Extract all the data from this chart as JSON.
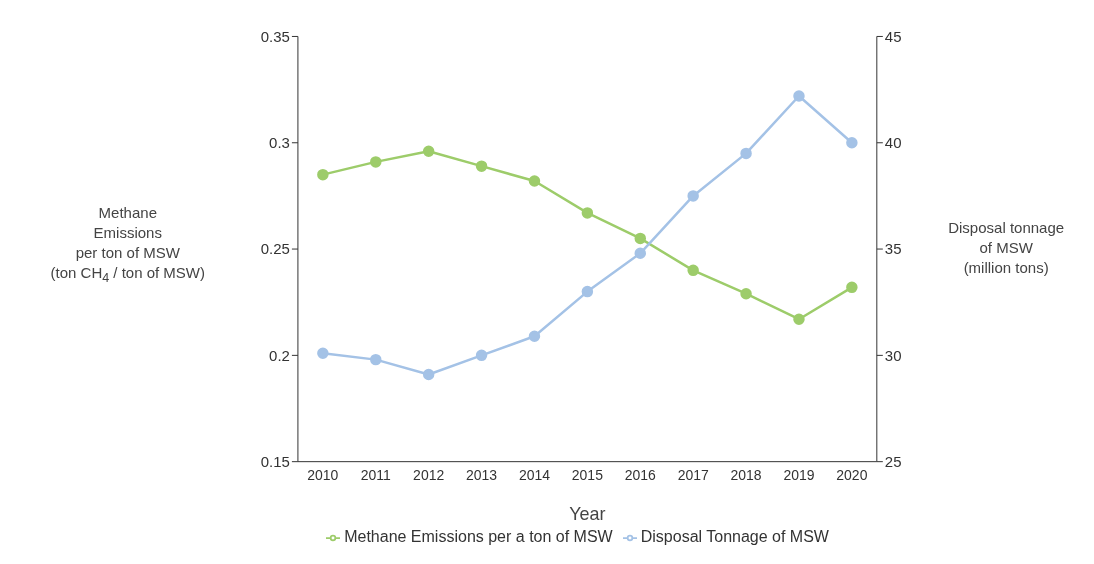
{
  "chart_data": {
    "type": "line",
    "xlabel": "Year",
    "ylabel": "Methane\nEmissions\nper ton of MSW\n(ton CH$_{4}$ / ton of MSW)",
    "y2label": "Disposal tonnage\nof MSW\n(million tons)",
    "categories": [
      "2010",
      "2011",
      "2012",
      "2013",
      "2014",
      "2015",
      "2016",
      "2017",
      "2018",
      "2019",
      "2020"
    ],
    "series": [
      {
        "name": "Methane Emissions per a ton of MSW",
        "color": "#9dcc6a",
        "values": [
          0.285,
          0.291,
          0.296,
          0.289,
          0.282,
          0.267,
          0.255,
          0.24,
          0.229,
          0.217,
          0.232
        ]
      },
      {
        "name": "Disposal Tonnage of MSW",
        "color": "#a4c2e6",
        "axis": "y2",
        "values": [
          30.1,
          29.8,
          29.1,
          30.0,
          30.9,
          33.0,
          34.8,
          37.5,
          39.5,
          42.2,
          40.0
        ]
      }
    ],
    "ylim": [
      0.15,
      0.35
    ],
    "yticks": [
      0.15,
      0.2,
      0.25,
      0.3,
      0.35
    ],
    "y2lim": [
      25,
      45
    ],
    "y2ticks": [
      25,
      30,
      35,
      40,
      45
    ],
    "grid": false,
    "legend": "bottom",
    "marker": "circle",
    "line_style": "solid"
  }
}
